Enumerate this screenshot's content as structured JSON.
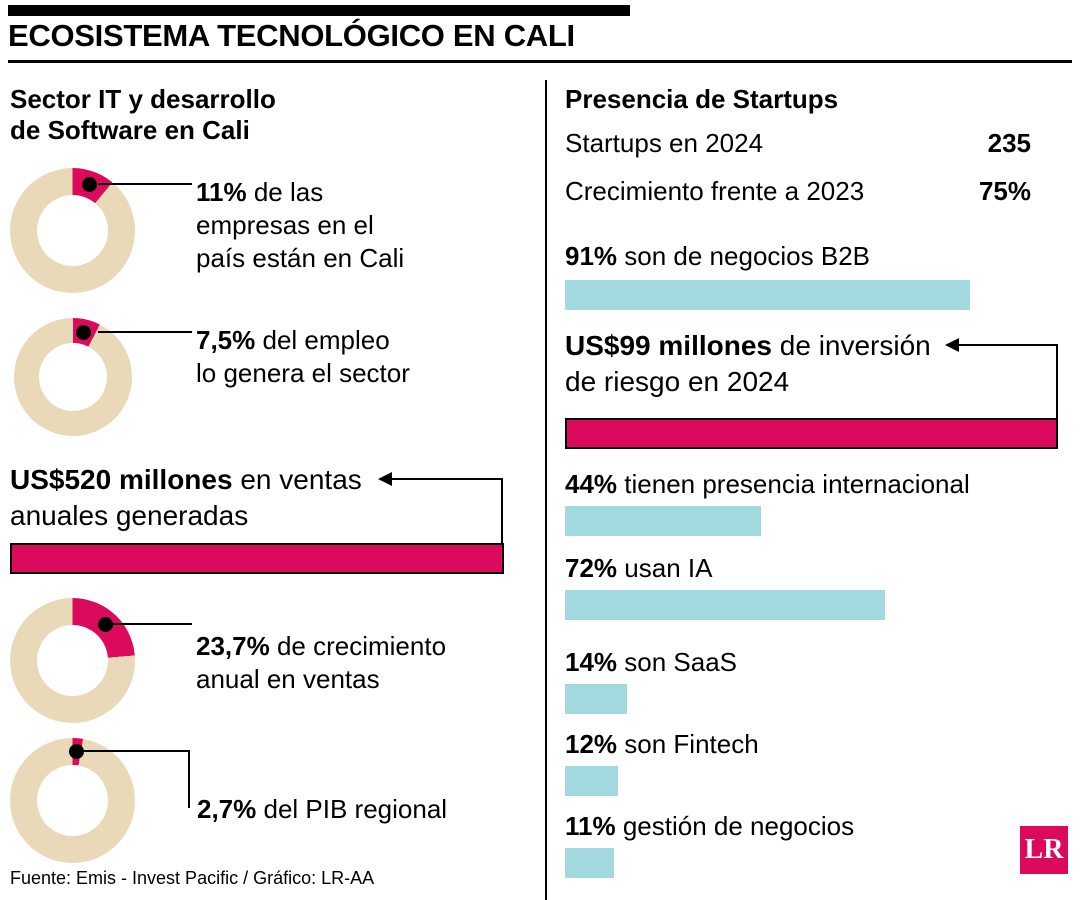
{
  "title": "ECOSISTEMA TECNOLÓGICO EN CALI",
  "colors": {
    "crimson": "#dc0a5c",
    "tan": "#ead9b8",
    "cyan": "#a2d9de",
    "black": "#000000"
  },
  "left": {
    "heading_line1": "Sector IT y desarrollo",
    "heading_line2": "de Software en Cali",
    "donuts": [
      {
        "pct": 11,
        "bold": "11%",
        "line1_rest": " de las",
        "line2": "empresas en el",
        "line3": "país están en Cali"
      },
      {
        "pct": 7.5,
        "bold": "7,5%",
        "line1_rest": " del empleo",
        "line2": "lo genera el sector"
      },
      {
        "pct": 23.7,
        "bold": "23,7%",
        "line1_rest": " de crecimiento",
        "line2": "anual en ventas"
      },
      {
        "pct": 2.7,
        "bold": "2,7%",
        "line1_rest": " del PIB regional"
      }
    ],
    "sales": {
      "bold": "US$520 millones",
      "line1_rest": " en ventas",
      "line2": "anuales generadas"
    }
  },
  "right": {
    "heading": "Presencia de Startups",
    "stats": [
      {
        "label": "Startups en 2024",
        "value": "235"
      },
      {
        "label": "Crecimiento frente a 2023",
        "value": "75%"
      }
    ],
    "investment": {
      "bold": "US$99 millones",
      "line1_rest": " de inversión",
      "line2": "de riesgo en 2024"
    },
    "bars": [
      {
        "pct": 91,
        "bold": "91%",
        "rest": " son de negocios B2B"
      },
      {
        "pct": 44,
        "bold": "44%",
        "rest": " tienen presencia internacional"
      },
      {
        "pct": 72,
        "bold": "72%",
        "rest": " usan IA"
      },
      {
        "pct": 14,
        "bold": "14%",
        "rest": " son SaaS"
      },
      {
        "pct": 12,
        "bold": "12%",
        "rest": " son Fintech"
      },
      {
        "pct": 11,
        "bold": "11%",
        "rest": " gestión de negocios"
      }
    ]
  },
  "footer": "Fuente: Emis - Invest Pacific / Gráfico: LR-AA",
  "logo": "LR",
  "chart_data": [
    {
      "type": "pie",
      "title": "Sector IT y desarrollo de Software en Cali",
      "items": [
        {
          "label": "de las empresas en el país están en Cali",
          "value": 11,
          "unit": "%"
        },
        {
          "label": "del empleo lo genera el sector",
          "value": 7.5,
          "unit": "%"
        },
        {
          "label": "de crecimiento anual en ventas",
          "value": 23.7,
          "unit": "%"
        },
        {
          "label": "del PIB regional",
          "value": 2.7,
          "unit": "%"
        }
      ],
      "annotation": "US$520 millones en ventas anuales generadas"
    },
    {
      "type": "bar",
      "title": "Presencia de Startups",
      "stats": {
        "Startups en 2024": 235,
        "Crecimiento frente a 2023": "75%"
      },
      "categories": [
        "son de negocios B2B",
        "tienen presencia internacional",
        "usan IA",
        "son SaaS",
        "son Fintech",
        "gestión de negocios"
      ],
      "values": [
        91,
        44,
        72,
        14,
        12,
        11
      ],
      "annotation": "US$99 millones de inversión de riesgo en 2024",
      "legend_position": "none",
      "grid": false
    }
  ]
}
